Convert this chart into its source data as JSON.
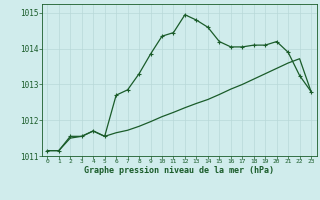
{
  "background_color": "#d0ecec",
  "grid_color": "#b8d8d8",
  "line_color": "#1a5c2a",
  "title": "Graphe pression niveau de la mer (hPa)",
  "ylim": [
    1011.0,
    1015.25
  ],
  "yticks": [
    1011,
    1012,
    1013,
    1014,
    1015
  ],
  "xlim": [
    -0.5,
    23.5
  ],
  "xticks": [
    0,
    1,
    2,
    3,
    4,
    5,
    6,
    7,
    8,
    9,
    10,
    11,
    12,
    13,
    14,
    15,
    16,
    17,
    18,
    19,
    20,
    21,
    22,
    23
  ],
  "series1_x": [
    0,
    1,
    2,
    3,
    4,
    5,
    6,
    7,
    8,
    9,
    10,
    11,
    12,
    13,
    14,
    15,
    16,
    17,
    18,
    19,
    20,
    21,
    22,
    23
  ],
  "series1_y": [
    1011.15,
    1011.15,
    1011.55,
    1011.55,
    1011.7,
    1011.55,
    1012.7,
    1012.85,
    1013.3,
    1013.85,
    1014.35,
    1014.45,
    1014.95,
    1014.8,
    1014.6,
    1014.2,
    1014.05,
    1014.05,
    1014.1,
    1014.1,
    1014.2,
    1013.9,
    1013.25,
    1012.8
  ],
  "series2_x": [
    0,
    1,
    2,
    3,
    4,
    5,
    6,
    7,
    8,
    9,
    10,
    11,
    12,
    13,
    14,
    15,
    16,
    17,
    18,
    19,
    20,
    21,
    22,
    23
  ],
  "series2_y": [
    1011.15,
    1011.15,
    1011.5,
    1011.55,
    1011.7,
    1011.55,
    1011.65,
    1011.72,
    1011.83,
    1011.96,
    1012.1,
    1012.22,
    1012.35,
    1012.47,
    1012.58,
    1012.72,
    1012.87,
    1013.0,
    1013.15,
    1013.3,
    1013.45,
    1013.6,
    1013.72,
    1012.8
  ]
}
